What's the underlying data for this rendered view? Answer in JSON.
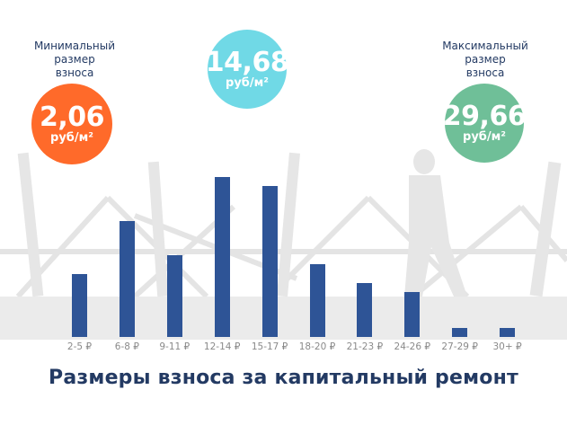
{
  "min_block": {
    "label_lines": [
      "Минимальный",
      "размер",
      "взноса"
    ],
    "value": "2,06",
    "unit": "руб/м²",
    "color": "#ff6a2a"
  },
  "avg_block": {
    "value": "14,68",
    "unit": "руб/м²",
    "color": "#70d9e6"
  },
  "max_block": {
    "label_lines": [
      "Максимальный",
      "размер",
      "взноса"
    ],
    "value": "29,66",
    "unit": "руб/м²",
    "color": "#6fbf98"
  },
  "title": "Размеры взноса за капитальный ремонт",
  "colors": {
    "bar": "#2e5496",
    "title": "#233a63",
    "tick": "#8a8a8a",
    "band": "#ebebeb"
  },
  "chart_data": {
    "type": "bar",
    "title": "Размеры взноса за капитальный ремонт",
    "xlabel": "",
    "ylabel": "",
    "categories": [
      "2-5 ₽",
      "6-8 ₽",
      "9-11 ₽",
      "12-14 ₽",
      "15-17 ₽",
      "18-20 ₽",
      "21-23 ₽",
      "24-26 ₽",
      "27-29 ₽",
      "30+ ₽"
    ],
    "values": [
      70,
      129,
      91,
      178,
      168,
      81,
      60,
      50,
      10,
      10
    ],
    "value_units": "relative bar height (px, no y-axis shown)",
    "grid": false,
    "legend": null,
    "annotations": [
      {
        "text": "Минимальный размер взноса 2,06 руб/м²"
      },
      {
        "text": "14,68 руб/м²"
      },
      {
        "text": "Максимальный размер взноса 29,66 руб/м²"
      }
    ]
  }
}
